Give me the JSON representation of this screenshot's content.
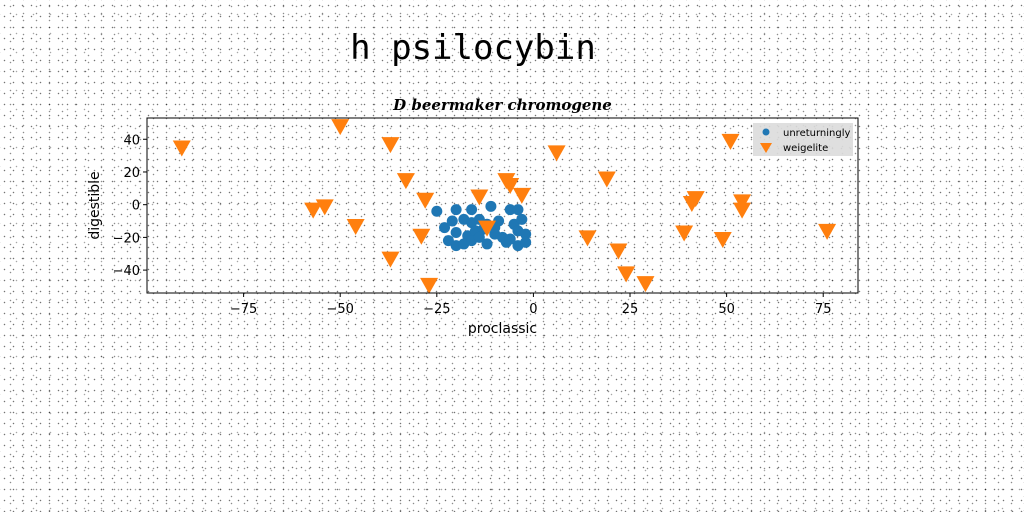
{
  "figure_title": "h psilocybin",
  "chart_data": {
    "type": "scatter",
    "title": "D beermaker chromogene",
    "xlabel": "proclassic",
    "ylabel": "digestible",
    "xlim": [
      -100,
      84
    ],
    "ylim": [
      -54,
      53
    ],
    "xticks": [
      -75,
      -50,
      -25,
      0,
      25,
      50,
      75
    ],
    "yticks": [
      -40,
      -20,
      0,
      20,
      40
    ],
    "grid": false,
    "legend_position": "top-right",
    "series": [
      {
        "name": "unreturningly",
        "marker": "circle",
        "color": "#1f77b4",
        "points": [
          [
            -25,
            -4
          ],
          [
            -20,
            -3
          ],
          [
            -16,
            -3
          ],
          [
            -11,
            -1
          ],
          [
            -6,
            -3
          ],
          [
            -4,
            -3
          ],
          [
            -23,
            -14
          ],
          [
            -21,
            -10
          ],
          [
            -18,
            -9
          ],
          [
            -16,
            -11
          ],
          [
            -14,
            -9
          ],
          [
            -12,
            -12
          ],
          [
            -9,
            -10
          ],
          [
            -5,
            -12
          ],
          [
            -3,
            -9
          ],
          [
            -20,
            -17
          ],
          [
            -17,
            -19
          ],
          [
            -15,
            -16
          ],
          [
            -13,
            -15
          ],
          [
            -10,
            -18
          ],
          [
            -8,
            -20
          ],
          [
            -4,
            -16
          ],
          [
            -2,
            -18
          ],
          [
            -22,
            -22
          ],
          [
            -20,
            -25
          ],
          [
            -18,
            -24
          ],
          [
            -16,
            -22
          ],
          [
            -12,
            -24
          ],
          [
            -7,
            -23
          ],
          [
            -4,
            -25
          ],
          [
            -2,
            -23
          ],
          [
            -10,
            -14
          ],
          [
            -6,
            -21
          ],
          [
            -14,
            -20
          ]
        ]
      },
      {
        "name": "weigelite",
        "marker": "triangle-down",
        "color": "#ff7f0e",
        "points": [
          [
            -91,
            35
          ],
          [
            -50,
            48
          ],
          [
            -37,
            37
          ],
          [
            -33,
            15
          ],
          [
            -28,
            3
          ],
          [
            -57,
            -3
          ],
          [
            -54,
            -1
          ],
          [
            -46,
            -13
          ],
          [
            -29,
            -19
          ],
          [
            -37,
            -33
          ],
          [
            -27,
            -49
          ],
          [
            -14,
            5
          ],
          [
            -7,
            15
          ],
          [
            -6,
            12
          ],
          [
            -3,
            6
          ],
          [
            -12,
            -14
          ],
          [
            6,
            32
          ],
          [
            14,
            -20
          ],
          [
            19,
            16
          ],
          [
            22,
            -28
          ],
          [
            24,
            -42
          ],
          [
            29,
            -48
          ],
          [
            39,
            -17
          ],
          [
            41,
            1
          ],
          [
            42,
            4
          ],
          [
            49,
            -21
          ],
          [
            51,
            39
          ],
          [
            54,
            -3
          ],
          [
            54,
            2
          ],
          [
            76,
            -16
          ]
        ]
      }
    ]
  }
}
